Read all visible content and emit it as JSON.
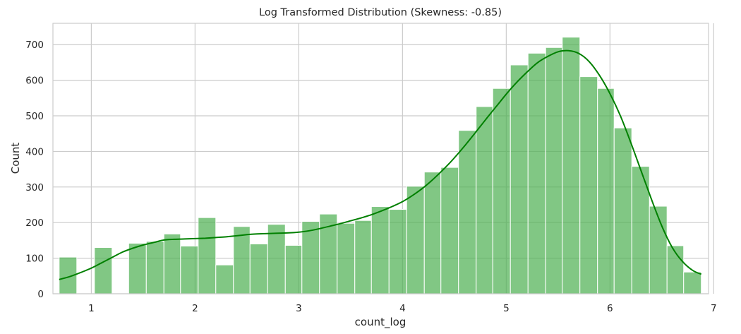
{
  "chart_data": {
    "type": "bar",
    "title": "Log Transformed Distribution (Skewness: -0.85)",
    "xlabel": "count_log",
    "ylabel": "Count",
    "xlim": [
      0.63,
      6.95
    ],
    "ylim": [
      0,
      760
    ],
    "xticks": [
      "1",
      "2",
      "3",
      "4",
      "5",
      "6",
      "7"
    ],
    "yticks": [
      "0",
      "100",
      "200",
      "300",
      "400",
      "500",
      "600",
      "700"
    ],
    "grid": true,
    "bar_color": "#4caf50",
    "bar_opacity": 0.7,
    "kde_color": "#008000",
    "bins": [
      {
        "x0": 0.69,
        "x1": 0.86,
        "value": 103
      },
      {
        "x0": 0.86,
        "x1": 1.03,
        "value": 0
      },
      {
        "x0": 1.03,
        "x1": 1.2,
        "value": 130
      },
      {
        "x0": 1.2,
        "x1": 1.36,
        "value": 0
      },
      {
        "x0": 1.36,
        "x1": 1.53,
        "value": 142
      },
      {
        "x0": 1.53,
        "x1": 1.7,
        "value": 147
      },
      {
        "x0": 1.7,
        "x1": 1.86,
        "value": 168
      },
      {
        "x0": 1.86,
        "x1": 2.03,
        "value": 134
      },
      {
        "x0": 2.03,
        "x1": 2.2,
        "value": 214
      },
      {
        "x0": 2.2,
        "x1": 2.37,
        "value": 81
      },
      {
        "x0": 2.37,
        "x1": 2.53,
        "value": 189
      },
      {
        "x0": 2.53,
        "x1": 2.7,
        "value": 140
      },
      {
        "x0": 2.7,
        "x1": 2.87,
        "value": 195
      },
      {
        "x0": 2.87,
        "x1": 3.03,
        "value": 136
      },
      {
        "x0": 3.03,
        "x1": 3.2,
        "value": 203
      },
      {
        "x0": 3.2,
        "x1": 3.37,
        "value": 224
      },
      {
        "x0": 3.37,
        "x1": 3.54,
        "value": 198
      },
      {
        "x0": 3.54,
        "x1": 3.7,
        "value": 206
      },
      {
        "x0": 3.7,
        "x1": 3.87,
        "value": 245
      },
      {
        "x0": 3.87,
        "x1": 4.04,
        "value": 237
      },
      {
        "x0": 4.04,
        "x1": 4.21,
        "value": 302
      },
      {
        "x0": 4.21,
        "x1": 4.37,
        "value": 342
      },
      {
        "x0": 4.37,
        "x1": 4.54,
        "value": 355
      },
      {
        "x0": 4.54,
        "x1": 4.71,
        "value": 459
      },
      {
        "x0": 4.71,
        "x1": 4.87,
        "value": 526
      },
      {
        "x0": 4.87,
        "x1": 5.04,
        "value": 577
      },
      {
        "x0": 5.04,
        "x1": 5.21,
        "value": 643
      },
      {
        "x0": 5.21,
        "x1": 5.38,
        "value": 676
      },
      {
        "x0": 5.38,
        "x1": 5.54,
        "value": 692
      },
      {
        "x0": 5.54,
        "x1": 5.71,
        "value": 721
      },
      {
        "x0": 5.71,
        "x1": 5.88,
        "value": 610
      },
      {
        "x0": 5.88,
        "x1": 6.04,
        "value": 577
      },
      {
        "x0": 6.04,
        "x1": 6.21,
        "value": 466
      },
      {
        "x0": 6.21,
        "x1": 6.38,
        "value": 358
      },
      {
        "x0": 6.38,
        "x1": 6.55,
        "value": 246
      },
      {
        "x0": 6.55,
        "x1": 6.71,
        "value": 135
      },
      {
        "x0": 6.71,
        "x1": 6.88,
        "value": 61
      }
    ],
    "kde": {
      "x": [
        0.69,
        0.8,
        0.9,
        1.0,
        1.1,
        1.2,
        1.3,
        1.4,
        1.5,
        1.6,
        1.7,
        1.8,
        1.9,
        2.0,
        2.1,
        2.2,
        2.3,
        2.4,
        2.5,
        2.6,
        2.7,
        2.8,
        2.9,
        3.0,
        3.1,
        3.2,
        3.3,
        3.4,
        3.5,
        3.6,
        3.7,
        3.8,
        3.9,
        4.0,
        4.1,
        4.2,
        4.3,
        4.4,
        4.5,
        4.6,
        4.7,
        4.8,
        4.9,
        5.0,
        5.1,
        5.2,
        5.3,
        5.4,
        5.5,
        5.6,
        5.7,
        5.8,
        5.9,
        6.0,
        6.1,
        6.2,
        6.3,
        6.4,
        6.5,
        6.6,
        6.7,
        6.8,
        6.88
      ],
      "y": [
        40,
        49,
        60,
        72,
        87,
        102,
        117,
        128,
        137,
        144,
        151,
        153,
        154,
        155,
        156,
        158,
        160,
        163,
        166,
        168,
        169,
        170,
        171,
        173,
        177,
        183,
        190,
        197,
        205,
        213,
        222,
        233,
        245,
        259,
        277,
        298,
        323,
        351,
        382,
        416,
        452,
        489,
        525,
        561,
        594,
        623,
        649,
        667,
        680,
        683,
        675,
        652,
        613,
        562,
        500,
        425,
        345,
        265,
        190,
        130,
        90,
        65,
        55
      ]
    }
  }
}
